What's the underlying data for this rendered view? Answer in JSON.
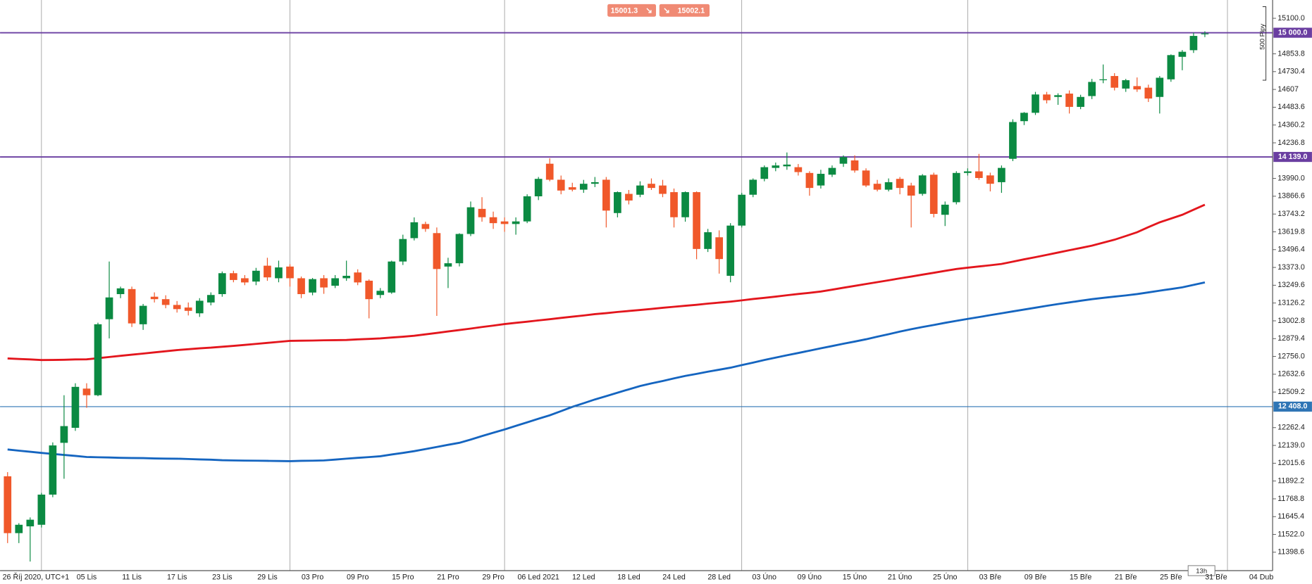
{
  "chart_data": {
    "type": "candlestick",
    "categories": [
      "26 Říj 2020, UTC+1",
      null,
      null,
      null,
      null,
      null,
      null,
      "05 Lis",
      null,
      null,
      null,
      "11 Lis",
      null,
      null,
      null,
      "17 Lis",
      null,
      null,
      null,
      "23 Lis",
      null,
      null,
      null,
      "29 Lis",
      null,
      null,
      null,
      "03 Pro",
      null,
      null,
      null,
      "09 Pro",
      null,
      null,
      null,
      "15 Pro",
      null,
      null,
      null,
      "21 Pro",
      null,
      null,
      null,
      "29 Pro",
      null,
      null,
      null,
      "06 Led 2021",
      null,
      null,
      null,
      "12 Led",
      null,
      null,
      null,
      "18 Led",
      null,
      null,
      null,
      "24 Led",
      null,
      null,
      null,
      "28 Led",
      null,
      null,
      null,
      "03 Úno",
      null,
      null,
      null,
      "09 Úno",
      null,
      null,
      null,
      "15 Úno",
      null,
      null,
      null,
      "21 Úno",
      null,
      null,
      null,
      "25 Úno",
      null,
      null,
      null,
      "03 Bře",
      null,
      null,
      null,
      "09 Bře",
      null,
      null,
      null,
      "15 Bře",
      null,
      null,
      null,
      "21 Bře",
      null,
      null,
      null,
      "25 Bře",
      null,
      null,
      null,
      "31 Bře",
      null,
      null,
      null,
      "04 Dub"
    ],
    "open": [
      11925,
      11531,
      11578,
      11589,
      11798,
      12157,
      12261,
      12533,
      12487,
      13014,
      13188,
      13223,
      12979,
      13170,
      13153,
      13113,
      13095,
      13055,
      13130,
      13188,
      13333,
      13298,
      13275,
      13385,
      13298,
      13379,
      13298,
      13199,
      13298,
      13246,
      13298,
      13338,
      13281,
      13182,
      13199,
      13414,
      13576,
      13674,
      13611,
      13379,
      13402,
      13605,
      13779,
      13721,
      13692,
      13674,
      13692,
      13866,
      14092,
      13981,
      13929,
      13912,
      13953,
      13981,
      13750,
      13883,
      13877,
      13953,
      13941,
      13895,
      13721,
      13895,
      13501,
      13582,
      13315,
      13663,
      13877,
      13987,
      14063,
      14074,
      14068,
      14028,
      13941,
      14016,
      14092,
      14115,
      14045,
      13953,
      13912,
      13987,
      13941,
      13883,
      14016,
      13738,
      13825,
      14028,
      14039,
      14011,
      13964,
      14126,
      14387,
      14445,
      14572,
      14555,
      14578,
      14486,
      14561,
      14671,
      14700,
      14613,
      14630,
      14619,
      14555,
      14677,
      14833,
      14879,
      14990,
      null,
      null,
      null,
      null,
      null
    ],
    "high": [
      11954,
      11600,
      11640,
      11810,
      12160,
      12487,
      12570,
      12570,
      12990,
      13414,
      13240,
      13240,
      13120,
      13200,
      13180,
      13140,
      13130,
      13160,
      13200,
      13345,
      13350,
      13320,
      13370,
      13440,
      13420,
      13395,
      13310,
      13300,
      13320,
      13320,
      13420,
      13360,
      13290,
      13230,
      13420,
      13600,
      13720,
      13690,
      13650,
      13440,
      13610,
      13830,
      13860,
      13760,
      13720,
      13720,
      13880,
      14000,
      14130,
      14010,
      13960,
      13980,
      14000,
      14000,
      13900,
      13910,
      13970,
      13990,
      13980,
      13920,
      13900,
      13900,
      13640,
      13630,
      13680,
      13890,
      13990,
      14080,
      14100,
      14170,
      14090,
      14040,
      14050,
      14080,
      14150,
      14150,
      14060,
      13980,
      13990,
      14000,
      13960,
      14020,
      14030,
      13830,
      14040,
      14060,
      14160,
      14030,
      14080,
      14400,
      14450,
      14590,
      14590,
      14580,
      14600,
      14570,
      14680,
      14780,
      14720,
      14680,
      14690,
      14640,
      14700,
      14850,
      14880,
      15000,
      15010,
      null,
      null,
      null,
      null,
      null
    ],
    "low": [
      11462,
      11462,
      11334,
      11570,
      11780,
      11908,
      12240,
      12400,
      12480,
      12881,
      13160,
      12960,
      12940,
      13130,
      13090,
      13060,
      13040,
      13030,
      13110,
      13170,
      13270,
      13250,
      13250,
      13280,
      13270,
      13240,
      13160,
      13180,
      13190,
      13230,
      13280,
      13250,
      13020,
      13160,
      13190,
      13390,
      13560,
      13620,
      13037,
      13230,
      13380,
      13590,
      13690,
      13640,
      13620,
      13600,
      13680,
      13840,
      13970,
      13880,
      13900,
      13890,
      13930,
      13650,
      13720,
      13810,
      13860,
      13910,
      13860,
      13650,
      13690,
      13430,
      13480,
      13330,
      13270,
      13650,
      13860,
      13970,
      14040,
      14050,
      14010,
      13870,
      13920,
      14000,
      14070,
      14030,
      13930,
      13900,
      13900,
      13880,
      13650,
      13870,
      13720,
      13660,
      13810,
      14010,
      13980,
      13900,
      13890,
      14110,
      14360,
      14430,
      14510,
      14500,
      14440,
      14470,
      14540,
      14650,
      14600,
      14590,
      14590,
      14520,
      14440,
      14660,
      14740,
      14860,
      14970,
      null,
      null,
      null,
      null,
      null
    ],
    "close": [
      11531,
      11589,
      11624,
      11798,
      12139,
      12273,
      12545,
      12487,
      12979,
      13165,
      13228,
      12985,
      13107,
      13153,
      13113,
      13084,
      13072,
      13142,
      13182,
      13333,
      13286,
      13269,
      13350,
      13304,
      13373,
      13298,
      13188,
      13292,
      13234,
      13298,
      13315,
      13269,
      13153,
      13211,
      13414,
      13570,
      13686,
      13640,
      13362,
      13402,
      13605,
      13790,
      13721,
      13680,
      13674,
      13692,
      13866,
      13987,
      13981,
      13906,
      13912,
      13953,
      13964,
      13767,
      13895,
      13837,
      13941,
      13924,
      13883,
      13721,
      13895,
      13501,
      13617,
      13431,
      13663,
      13877,
      13981,
      14068,
      14080,
      14086,
      14034,
      13924,
      14022,
      14063,
      14138,
      14045,
      13941,
      13912,
      13964,
      13924,
      13871,
      14011,
      13744,
      13808,
      14028,
      14039,
      13993,
      13953,
      14063,
      14381,
      14445,
      14572,
      14532,
      14567,
      14486,
      14555,
      14659,
      14677,
      14619,
      14671,
      14607,
      14544,
      14688,
      14845,
      14868,
      14978,
      14995,
      null,
      null,
      null,
      null,
      null
    ],
    "up_color": "#0b8a42",
    "down_color": "#f0582a",
    "overlays": [
      {
        "color": "#e3161d",
        "values": [
          12742,
          12738,
          12735,
          12731,
          12732,
          12733,
          12735,
          12736,
          12744,
          12752,
          12760,
          12768,
          12776,
          12784,
          12792,
          12800,
          12806,
          12812,
          12817,
          12823,
          12829,
          12836,
          12843,
          12850,
          12857,
          12864,
          12865,
          12866,
          12868,
          12869,
          12870,
          12874,
          12877,
          12881,
          12887,
          12893,
          12899,
          12909,
          12919,
          12929,
          12939,
          12949,
          12960,
          12970,
          12980,
          12989,
          12997,
          13006,
          13014,
          13023,
          13032,
          13040,
          13049,
          13056,
          13064,
          13071,
          13078,
          13085,
          13093,
          13100,
          13107,
          13114,
          13122,
          13129,
          13136,
          13145,
          13154,
          13162,
          13171,
          13180,
          13189,
          13197,
          13206,
          13219,
          13232,
          13245,
          13258,
          13271,
          13284,
          13297,
          13310,
          13323,
          13336,
          13349,
          13362,
          13371,
          13380,
          13388,
          13397,
          13413,
          13429,
          13444,
          13460,
          13476,
          13492,
          13508,
          13524,
          13545,
          13565,
          13591,
          13617,
          13652,
          13686,
          13712,
          13738,
          13773,
          13808,
          null,
          null,
          null,
          null,
          null
        ]
      },
      {
        "color": "#1565c0",
        "values": [
          12111,
          12103,
          12095,
          12087,
          12080,
          12073,
          12066,
          12059,
          12057,
          12055,
          12053,
          12052,
          12051,
          12049,
          12048,
          12047,
          12045,
          12042,
          12040,
          12037,
          12035,
          12034,
          12033,
          12032,
          12031,
          12030,
          12032,
          12033,
          12035,
          12041,
          12047,
          12053,
          12058,
          12064,
          12076,
          12087,
          12099,
          12114,
          12128,
          12143,
          12157,
          12180,
          12204,
          12227,
          12250,
          12275,
          12299,
          12324,
          12348,
          12377,
          12406,
          12432,
          12458,
          12481,
          12505,
          12528,
          12551,
          12569,
          12586,
          12604,
          12621,
          12635,
          12650,
          12664,
          12678,
          12696,
          12713,
          12731,
          12748,
          12764,
          12780,
          12796,
          12812,
          12828,
          12844,
          12859,
          12875,
          12893,
          12910,
          12928,
          12945,
          12960,
          12974,
          12989,
          13003,
          13016,
          13029,
          13042,
          13055,
          13068,
          13081,
          13094,
          13107,
          13119,
          13130,
          13142,
          13153,
          13162,
          13171,
          13179,
          13188,
          13200,
          13212,
          13223,
          13235,
          13252,
          13269,
          null,
          null,
          null,
          null,
          null
        ]
      }
    ],
    "hlines": [
      {
        "value": 15000,
        "label": "15 000.0",
        "color": "#6a3ea1"
      },
      {
        "value": 14139,
        "label": "14 139.0",
        "color": "#6a3ea1"
      },
      {
        "value": 12408,
        "label": "12 408.0",
        "color": "#2f75b5"
      }
    ],
    "ylim": [
      11271,
      15227
    ],
    "yticks": [
      {
        "value": 15100,
        "label": "15100.0"
      },
      {
        "value": 14853.8,
        "label": "14853.8"
      },
      {
        "value": 14730.4,
        "label": "14730.4"
      },
      14607,
      {
        "value": 14483.6,
        "label": "14483.6"
      },
      {
        "value": 14360.2,
        "label": "14360.2"
      },
      {
        "value": 14236.8,
        "label": "14236.8"
      },
      {
        "value": 13990,
        "label": "13990.0"
      },
      {
        "value": 13866.6,
        "label": "13866.6"
      },
      {
        "value": 13743.2,
        "label": "13743.2"
      },
      {
        "value": 13619.8,
        "label": "13619.8"
      },
      {
        "value": 13496.4,
        "label": "13496.4"
      },
      {
        "value": 13373,
        "label": "13373.0"
      },
      {
        "value": 13249.6,
        "label": "13249.6"
      },
      {
        "value": 13126.2,
        "label": "13126.2"
      },
      {
        "value": 13002.8,
        "label": "13002.8"
      },
      {
        "value": 12879.4,
        "label": "12879.4"
      },
      {
        "value": 12756,
        "label": "12756.0"
      },
      {
        "value": 12632.6,
        "label": "12632.6"
      },
      {
        "value": 12509.2,
        "label": "12509.2"
      },
      {
        "value": 12262.4,
        "label": "12262.4"
      },
      {
        "value": 12139,
        "label": "12139.0"
      },
      {
        "value": 12015.6,
        "label": "12015.6"
      },
      {
        "value": 11892.2,
        "label": "11892.2"
      },
      {
        "value": 11768.8,
        "label": "11768.8"
      },
      {
        "value": 11645.4,
        "label": "11645.4"
      },
      {
        "value": 11522,
        "label": "11522.0"
      },
      {
        "value": 11398.6,
        "label": "11398.6"
      }
    ],
    "sell_quote": 15001.3,
    "buy_quote": 15002.1,
    "range_label": "500 Pipy",
    "timeframe_label": "13h"
  }
}
